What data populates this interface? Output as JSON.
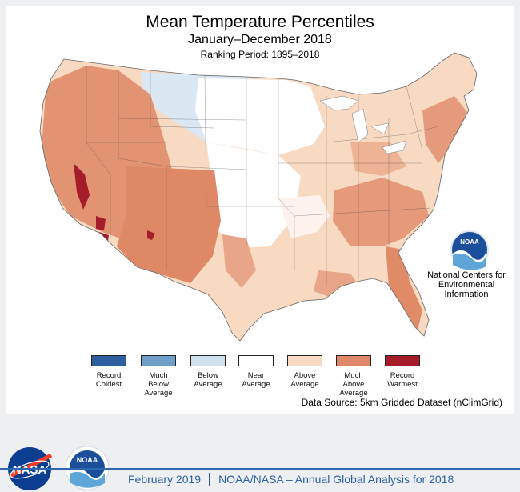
{
  "title": "Mean Temperature Percentiles",
  "subtitle": "January–December 2018",
  "ranking_period": "Ranking Period: 1895–2018",
  "legend": [
    {
      "label": "Record\nColdest",
      "color": "#2f5f9e"
    },
    {
      "label": "Much\nBelow\nAverage",
      "color": "#6f9fcb"
    },
    {
      "label": "Below\nAverage",
      "color": "#cfe0ef"
    },
    {
      "label": "Near\nAverage",
      "color": "#ffffff"
    },
    {
      "label": "Above\nAverage",
      "color": "#f8d9c2"
    },
    {
      "label": "Much\nAbove\nAverage",
      "color": "#e0896a"
    },
    {
      "label": "Record\nWarmest",
      "color": "#a51d2b"
    }
  ],
  "data_source": "Data Source:  5km Gridded Dataset (nClimGrid)",
  "ncei": {
    "logo_text": "NOAA",
    "label": "National Centers for\nEnvironmental\nInformation"
  },
  "footer": {
    "date": "February 2019",
    "title": "NOAA/NASA – Annual Global Analysis for 2018",
    "nasa_logo_text": "NASA",
    "noaa_logo_text": "NOAA"
  },
  "map": {
    "regions": [
      {
        "name": "above-average-base",
        "category": "Above Average"
      },
      {
        "name": "northern-plains",
        "category": "Below Average"
      },
      {
        "name": "upper-midwest",
        "category": "Near Average"
      },
      {
        "name": "central-plains",
        "category": "Near Average"
      },
      {
        "name": "west",
        "category": "Much Above Average"
      },
      {
        "name": "southwest",
        "category": "Much Above Average"
      },
      {
        "name": "southeast",
        "category": "Much Above Average"
      },
      {
        "name": "florida",
        "category": "Much Above Average"
      },
      {
        "name": "northeast",
        "category": "Much Above Average"
      },
      {
        "name": "nevada-california",
        "category": "Record Warmest"
      }
    ]
  }
}
